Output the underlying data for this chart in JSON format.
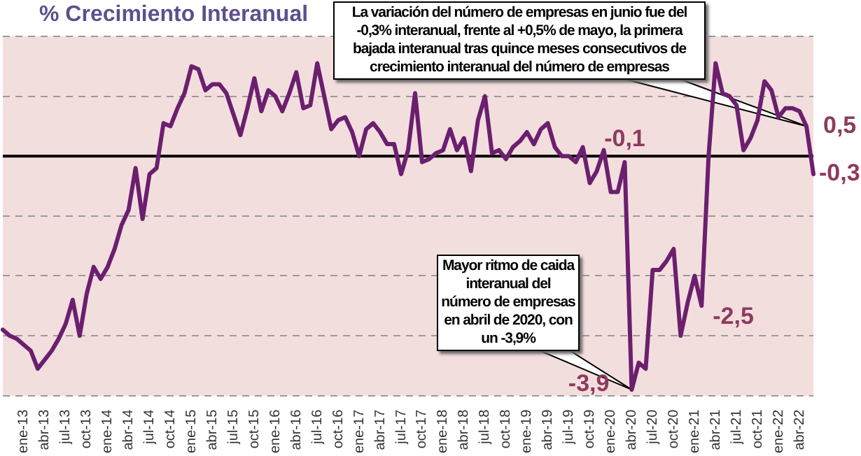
{
  "chart_data": {
    "type": "line",
    "title": "% Crecimiento Interanual",
    "categories": [
      null,
      null,
      null,
      "ene-13",
      null,
      null,
      "abr-13",
      null,
      null,
      "jul-13",
      null,
      null,
      "oct-13",
      null,
      null,
      "ene-14",
      null,
      null,
      "abr-14",
      null,
      null,
      "jul-14",
      null,
      null,
      "oct-14",
      null,
      null,
      "ene-15",
      null,
      null,
      "abr-15",
      null,
      null,
      "jul-15",
      null,
      null,
      "oct-15",
      null,
      null,
      "ene-16",
      null,
      null,
      "abr-16",
      null,
      null,
      "jul-16",
      null,
      null,
      "oct-16",
      null,
      null,
      "ene-17",
      null,
      null,
      "abr-17",
      null,
      null,
      "jul-17",
      null,
      null,
      "oct-17",
      null,
      null,
      "ene-18",
      null,
      null,
      "abr-18",
      null,
      null,
      "jul-18",
      null,
      null,
      "oct-18",
      null,
      null,
      "ene-19",
      null,
      null,
      "abr-19",
      null,
      null,
      "jul-19",
      null,
      null,
      "oct-19",
      null,
      null,
      "ene-20",
      null,
      null,
      "abr-20",
      null,
      null,
      "jul-20",
      null,
      null,
      "oct-20",
      null,
      null,
      "ene-21",
      null,
      null,
      "abr-21",
      null,
      null,
      "jul-21",
      null,
      null,
      "oct-21",
      null,
      null,
      "ene-22",
      null,
      null,
      "abr-22",
      null,
      null
    ],
    "series": [
      {
        "color": "#6b1f6e",
        "values": [
          -2.9,
          -3.0,
          -3.05,
          -3.15,
          -3.25,
          -3.55,
          -3.4,
          -3.25,
          -3.05,
          -2.8,
          -2.4,
          -3.0,
          -2.3,
          -1.85,
          -2.05,
          -1.85,
          -1.55,
          -1.15,
          -0.9,
          -0.2,
          -1.05,
          -0.3,
          -0.2,
          0.55,
          0.5,
          0.8,
          1.05,
          1.5,
          1.45,
          1.1,
          1.2,
          1.2,
          1.05,
          0.7,
          0.35,
          0.8,
          1.3,
          0.75,
          1.1,
          1.0,
          0.75,
          1.05,
          1.4,
          0.8,
          0.85,
          1.55,
          1.0,
          0.45,
          0.6,
          0.65,
          0.4,
          0.0,
          0.45,
          0.55,
          0.4,
          0.2,
          0.2,
          -0.3,
          0.1,
          1.05,
          -0.1,
          -0.05,
          0.05,
          0.1,
          0.45,
          0.1,
          0.3,
          -0.25,
          0.6,
          1.0,
          0.05,
          0.1,
          -0.05,
          0.15,
          0.25,
          0.4,
          0.2,
          0.45,
          0.55,
          0.15,
          0.0,
          0.0,
          -0.1,
          0.15,
          -0.45,
          -0.25,
          0.1,
          -0.6,
          -0.6,
          -0.1,
          -3.9,
          -3.45,
          -3.55,
          -1.9,
          -1.9,
          -1.75,
          -1.55,
          -3.0,
          -2.45,
          -2.0,
          -2.5,
          0.0,
          1.55,
          1.05,
          1.0,
          0.85,
          0.1,
          0.3,
          0.6,
          1.25,
          1.1,
          0.65,
          0.8,
          0.8,
          0.75,
          0.5,
          -0.3
        ],
        "value_labels": [
          null,
          null,
          null,
          null,
          null,
          null,
          null,
          null,
          null,
          null,
          null,
          null,
          null,
          null,
          null,
          null,
          null,
          null,
          null,
          null,
          null,
          null,
          null,
          null,
          null,
          null,
          null,
          null,
          null,
          null,
          null,
          null,
          null,
          null,
          null,
          null,
          null,
          null,
          null,
          null,
          null,
          null,
          null,
          null,
          null,
          null,
          null,
          null,
          null,
          null,
          null,
          null,
          null,
          null,
          null,
          null,
          null,
          null,
          null,
          null,
          null,
          null,
          null,
          null,
          null,
          null,
          null,
          null,
          null,
          null,
          null,
          null,
          null,
          null,
          null,
          null,
          null,
          null,
          null,
          null,
          null,
          null,
          null,
          null,
          null,
          null,
          null,
          null,
          null,
          "-0,1",
          "-3,9",
          null,
          null,
          null,
          null,
          null,
          null,
          null,
          null,
          null,
          "-2,5",
          null,
          null,
          null,
          null,
          null,
          null,
          null,
          null,
          null,
          null,
          null,
          null,
          null,
          null,
          "0,5",
          "-0,3"
        ]
      }
    ],
    "ylim": [
      -4,
      2
    ],
    "yticks": [
      {
        "value": -4,
        "label": null
      },
      {
        "value": -3,
        "label": null
      },
      {
        "value": -2,
        "label": null
      },
      {
        "value": -1,
        "label": null
      },
      {
        "value": 0,
        "label": null
      },
      {
        "value": 1,
        "label": null
      },
      {
        "value": 2,
        "label": null
      }
    ],
    "tick_labels": "x",
    "grid": "y",
    "legend": false,
    "marker": "none",
    "line_style": "solid",
    "ref_lines": [
      {
        "axis": "y",
        "value": 0,
        "color": "#000000"
      }
    ],
    "annotations": [
      "La variación del número de empresas en junio fue del -0,3% interanual, frente al +0,5% de mayo, la primera bajada interanual tras quince meses consecutivos de crecimiento interanual del número de empresas",
      "Mayor ritmo de caida interanual del número de empresas en abril de 2020, con un -3,9%"
    ]
  }
}
